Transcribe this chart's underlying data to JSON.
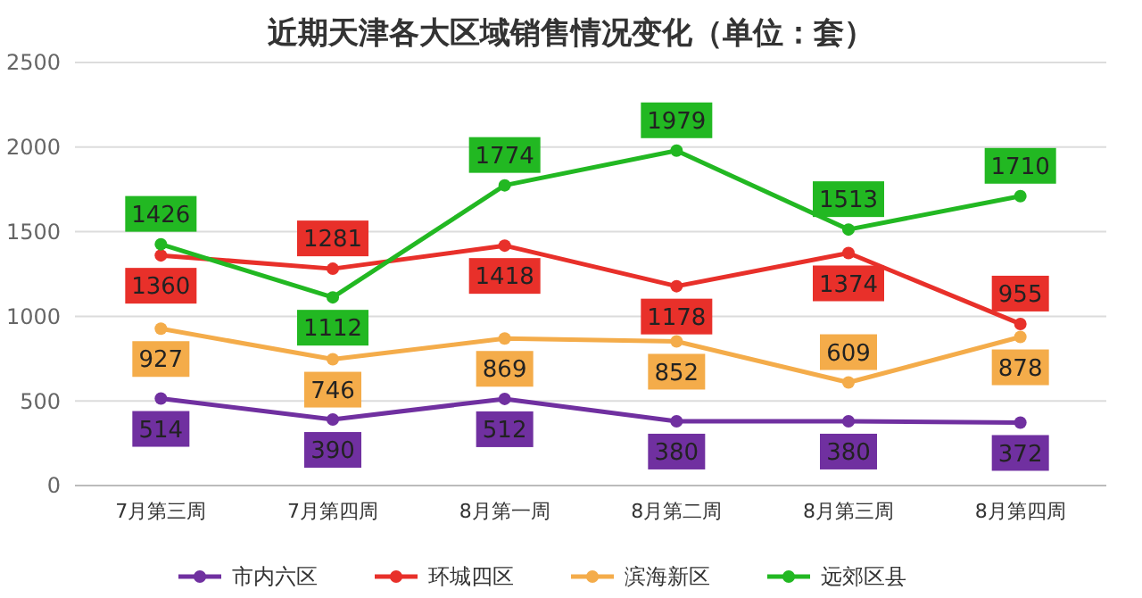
{
  "chart_data": {
    "type": "line",
    "title": "近期天津各大区域销售情况变化（单位：套）",
    "categories": [
      "7月第三周",
      "7月第四周",
      "8月第一周",
      "8月第二周",
      "8月第三周",
      "8月第四周"
    ],
    "series": [
      {
        "name": "市内六区",
        "color": "#7030a0",
        "values": [
          514,
          390,
          512,
          380,
          380,
          372
        ]
      },
      {
        "name": "环城四区",
        "color": "#e8302a",
        "values": [
          1360,
          1281,
          1418,
          1178,
          1374,
          955
        ]
      },
      {
        "name": "滨海新区",
        "color": "#f4ac4a",
        "values": [
          927,
          746,
          869,
          852,
          609,
          878
        ]
      },
      {
        "name": "远郊区县",
        "color": "#22b822",
        "values": [
          1426,
          1112,
          1774,
          1979,
          1513,
          1710
        ]
      }
    ],
    "ylim": [
      0,
      2500
    ],
    "yticks": [
      0,
      500,
      1000,
      1500,
      2000,
      2500
    ],
    "grid": "y",
    "legend": "bottom",
    "marker": "circle",
    "line_style": "solid",
    "data_labels": true
  }
}
